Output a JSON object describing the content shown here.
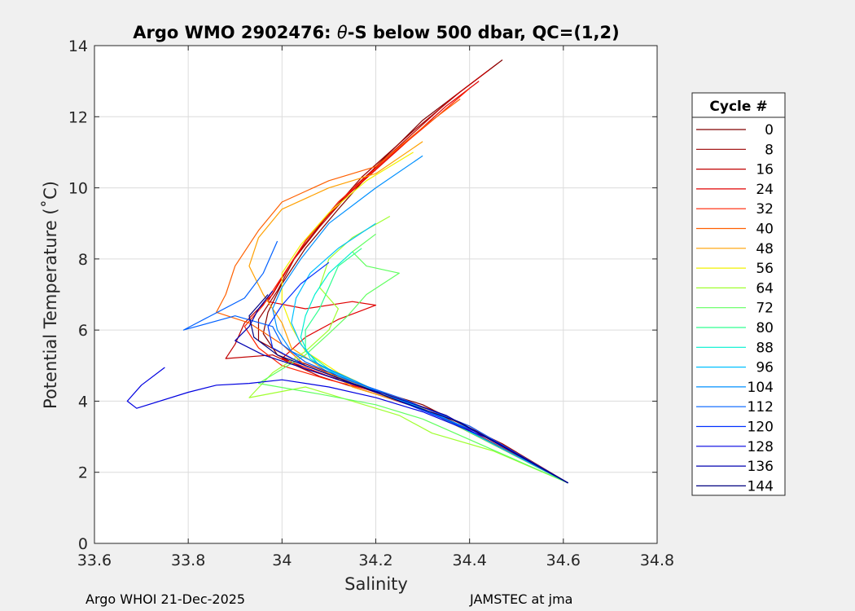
{
  "chart_data": {
    "type": "line",
    "title": "Argo WMO 2902476: θ-S below 500 dbar,  QC=(1,2)",
    "title_prefix": "Argo WMO 2902476: ",
    "title_theta": "θ",
    "title_suffix": "-S below 500 dbar,  QC=(1,2)",
    "xlabel": "Salinity",
    "ylabel": "Potential Temperature (˚C)",
    "xlim": [
      33.6,
      34.8
    ],
    "ylim": [
      0,
      14
    ],
    "xticks": [
      "33.6",
      "33.8",
      "34",
      "34.2",
      "34.4",
      "34.6",
      "34.8"
    ],
    "yticks": [
      "0",
      "2",
      "4",
      "6",
      "8",
      "10",
      "12",
      "14"
    ],
    "grid": true,
    "legend": {
      "title": "Cycle #",
      "placement": "right",
      "entries": [
        {
          "label": "0",
          "color": "#800000"
        },
        {
          "label": "8",
          "color": "#9a0000"
        },
        {
          "label": "16",
          "color": "#c00000"
        },
        {
          "label": "24",
          "color": "#e00000"
        },
        {
          "label": "32",
          "color": "#ff2000"
        },
        {
          "label": "40",
          "color": "#ff6000"
        },
        {
          "label": "48",
          "color": "#ffa000"
        },
        {
          "label": "56",
          "color": "#f2f200"
        },
        {
          "label": "64",
          "color": "#a0ff30"
        },
        {
          "label": "72",
          "color": "#60ff60"
        },
        {
          "label": "80",
          "color": "#30ff90"
        },
        {
          "label": "88",
          "color": "#00f0d0"
        },
        {
          "label": "96",
          "color": "#00c0ff"
        },
        {
          "label": "104",
          "color": "#0090ff"
        },
        {
          "label": "112",
          "color": "#0060ff"
        },
        {
          "label": "120",
          "color": "#0030ff"
        },
        {
          "label": "128",
          "color": "#0000e0"
        },
        {
          "label": "136",
          "color": "#0000b0"
        },
        {
          "label": "144",
          "color": "#000080"
        }
      ]
    },
    "series": [
      {
        "name": "0",
        "color": "#800000",
        "points": [
          [
            34.47,
            13.6
          ],
          [
            34.4,
            12.9
          ],
          [
            34.3,
            11.9
          ],
          [
            34.2,
            10.6
          ],
          [
            34.12,
            9.4
          ],
          [
            34.05,
            8.3
          ],
          [
            34.0,
            7.3
          ],
          [
            33.97,
            6.5
          ],
          [
            33.96,
            5.9
          ],
          [
            33.99,
            5.3
          ],
          [
            34.05,
            4.9
          ],
          [
            34.15,
            4.5
          ],
          [
            34.3,
            3.9
          ],
          [
            34.45,
            2.9
          ],
          [
            34.61,
            1.7
          ]
        ]
      },
      {
        "name": "8",
        "color": "#9a0000",
        "points": [
          [
            34.46,
            13.5
          ],
          [
            34.38,
            12.7
          ],
          [
            34.28,
            11.6
          ],
          [
            34.17,
            10.3
          ],
          [
            34.09,
            9.1
          ],
          [
            34.03,
            8.1
          ],
          [
            33.99,
            7.1
          ],
          [
            33.95,
            6.3
          ],
          [
            33.95,
            5.7
          ],
          [
            34.02,
            5.2
          ],
          [
            34.1,
            4.8
          ],
          [
            34.2,
            4.3
          ],
          [
            34.33,
            3.7
          ],
          [
            34.47,
            2.8
          ],
          [
            34.61,
            1.7
          ]
        ]
      },
      {
        "name": "16",
        "color": "#c00000",
        "points": [
          [
            34.44,
            13.3
          ],
          [
            34.36,
            12.5
          ],
          [
            34.26,
            11.3
          ],
          [
            34.16,
            10.1
          ],
          [
            34.08,
            8.9
          ],
          [
            34.02,
            7.9
          ],
          [
            33.98,
            7.0
          ],
          [
            33.92,
            6.2
          ],
          [
            33.9,
            5.6
          ],
          [
            33.88,
            5.2
          ],
          [
            33.98,
            5.3
          ],
          [
            34.08,
            4.7
          ],
          [
            34.2,
            4.2
          ],
          [
            34.34,
            3.6
          ],
          [
            34.61,
            1.7
          ]
        ]
      },
      {
        "name": "24",
        "color": "#e00000",
        "points": [
          [
            34.42,
            13.0
          ],
          [
            34.35,
            12.3
          ],
          [
            34.25,
            11.1
          ],
          [
            34.14,
            9.8
          ],
          [
            34.06,
            8.7
          ],
          [
            34.01,
            7.7
          ],
          [
            33.97,
            6.8
          ],
          [
            34.05,
            6.6
          ],
          [
            34.15,
            6.8
          ],
          [
            34.2,
            6.7
          ],
          [
            34.12,
            6.3
          ],
          [
            34.05,
            5.8
          ],
          [
            34.0,
            5.2
          ],
          [
            34.12,
            4.6
          ],
          [
            34.3,
            3.8
          ],
          [
            34.61,
            1.7
          ]
        ]
      },
      {
        "name": "32",
        "color": "#ff2000",
        "points": [
          [
            34.4,
            12.8
          ],
          [
            34.33,
            12.0
          ],
          [
            34.23,
            10.9
          ],
          [
            34.12,
            9.6
          ],
          [
            34.05,
            8.5
          ],
          [
            34.0,
            7.5
          ],
          [
            33.96,
            6.7
          ],
          [
            33.92,
            6.1
          ],
          [
            33.95,
            5.5
          ],
          [
            34.0,
            5.0
          ],
          [
            34.1,
            4.6
          ],
          [
            34.25,
            4.1
          ],
          [
            34.4,
            3.3
          ],
          [
            34.61,
            1.7
          ]
        ]
      },
      {
        "name": "40",
        "color": "#ff6000",
        "points": [
          [
            34.38,
            12.5
          ],
          [
            34.3,
            11.7
          ],
          [
            34.2,
            10.6
          ],
          [
            34.1,
            10.2
          ],
          [
            34.0,
            9.6
          ],
          [
            33.95,
            8.8
          ],
          [
            33.9,
            7.8
          ],
          [
            33.88,
            7.0
          ],
          [
            33.86,
            6.5
          ],
          [
            33.93,
            6.2
          ],
          [
            34.0,
            5.6
          ],
          [
            34.05,
            5.0
          ],
          [
            34.18,
            4.4
          ],
          [
            34.35,
            3.6
          ],
          [
            34.61,
            1.7
          ]
        ]
      },
      {
        "name": "48",
        "color": "#ffa000",
        "points": [
          [
            34.3,
            11.3
          ],
          [
            34.2,
            10.4
          ],
          [
            34.1,
            10.0
          ],
          [
            34.0,
            9.4
          ],
          [
            33.95,
            8.6
          ],
          [
            33.93,
            7.8
          ],
          [
            33.96,
            7.0
          ],
          [
            34.0,
            6.2
          ],
          [
            34.02,
            5.5
          ],
          [
            34.1,
            4.8
          ],
          [
            34.15,
            4.4
          ],
          [
            34.3,
            3.8
          ],
          [
            34.61,
            1.7
          ]
        ]
      },
      {
        "name": "56",
        "color": "#f2f200",
        "points": [
          [
            34.28,
            11.0
          ],
          [
            34.18,
            10.2
          ],
          [
            34.1,
            9.3
          ],
          [
            34.04,
            8.4
          ],
          [
            34.0,
            7.6
          ],
          [
            34.0,
            6.8
          ],
          [
            34.02,
            6.1
          ],
          [
            34.05,
            5.4
          ],
          [
            34.12,
            4.8
          ],
          [
            34.2,
            4.3
          ],
          [
            34.35,
            3.5
          ],
          [
            34.61,
            1.7
          ]
        ]
      },
      {
        "name": "64",
        "color": "#a0ff30",
        "points": [
          [
            34.23,
            9.2
          ],
          [
            34.15,
            8.6
          ],
          [
            34.1,
            8.0
          ],
          [
            34.08,
            7.2
          ],
          [
            34.12,
            6.6
          ],
          [
            34.1,
            6.0
          ],
          [
            34.05,
            5.4
          ],
          [
            33.98,
            4.8
          ],
          [
            33.93,
            4.1
          ],
          [
            34.05,
            4.4
          ],
          [
            34.15,
            4.0
          ],
          [
            34.25,
            3.6
          ],
          [
            34.32,
            3.1
          ],
          [
            34.45,
            2.6
          ],
          [
            34.61,
            1.7
          ]
        ]
      },
      {
        "name": "72",
        "color": "#60ff60",
        "points": [
          [
            34.2,
            8.7
          ],
          [
            34.15,
            8.2
          ],
          [
            34.18,
            7.8
          ],
          [
            34.25,
            7.6
          ],
          [
            34.18,
            7.0
          ],
          [
            34.14,
            6.4
          ],
          [
            34.1,
            5.9
          ],
          [
            34.05,
            5.3
          ],
          [
            34.0,
            4.9
          ],
          [
            33.95,
            4.5
          ],
          [
            34.08,
            4.2
          ],
          [
            34.2,
            3.9
          ],
          [
            34.3,
            3.5
          ],
          [
            34.61,
            1.7
          ]
        ]
      },
      {
        "name": "80",
        "color": "#30ff90",
        "points": [
          [
            34.17,
            8.3
          ],
          [
            34.12,
            7.8
          ],
          [
            34.1,
            7.2
          ],
          [
            34.08,
            6.6
          ],
          [
            34.05,
            6.0
          ],
          [
            34.05,
            5.4
          ],
          [
            34.1,
            4.9
          ],
          [
            34.2,
            4.3
          ],
          [
            34.33,
            3.6
          ],
          [
            34.61,
            1.7
          ]
        ]
      },
      {
        "name": "88",
        "color": "#00f0d0",
        "points": [
          [
            34.15,
            8.2
          ],
          [
            34.1,
            7.6
          ],
          [
            34.07,
            7.0
          ],
          [
            34.05,
            6.4
          ],
          [
            34.04,
            5.8
          ],
          [
            34.06,
            5.2
          ],
          [
            34.12,
            4.7
          ],
          [
            34.22,
            4.2
          ],
          [
            34.35,
            3.5
          ],
          [
            34.61,
            1.7
          ]
        ]
      },
      {
        "name": "96",
        "color": "#00c0ff",
        "points": [
          [
            34.2,
            9.0
          ],
          [
            34.12,
            8.3
          ],
          [
            34.06,
            7.6
          ],
          [
            34.03,
            6.9
          ],
          [
            34.02,
            6.2
          ],
          [
            34.04,
            5.6
          ],
          [
            34.08,
            5.0
          ],
          [
            34.16,
            4.5
          ],
          [
            34.28,
            3.9
          ],
          [
            34.42,
            3.1
          ],
          [
            34.61,
            1.7
          ]
        ]
      },
      {
        "name": "104",
        "color": "#0090ff",
        "points": [
          [
            34.3,
            10.9
          ],
          [
            34.2,
            10.0
          ],
          [
            34.1,
            9.0
          ],
          [
            34.04,
            8.0
          ],
          [
            34.0,
            7.2
          ],
          [
            33.98,
            6.6
          ],
          [
            33.99,
            6.0
          ],
          [
            34.02,
            5.4
          ],
          [
            34.1,
            4.9
          ],
          [
            34.2,
            4.3
          ],
          [
            34.35,
            3.5
          ],
          [
            34.61,
            1.7
          ]
        ]
      },
      {
        "name": "112",
        "color": "#0060ff",
        "points": [
          [
            33.99,
            8.5
          ],
          [
            33.96,
            7.6
          ],
          [
            33.92,
            6.9
          ],
          [
            33.79,
            6.0
          ],
          [
            33.9,
            6.4
          ],
          [
            33.98,
            6.1
          ],
          [
            34.0,
            5.6
          ],
          [
            34.05,
            5.1
          ],
          [
            34.14,
            4.6
          ],
          [
            34.25,
            4.1
          ],
          [
            34.4,
            3.3
          ],
          [
            34.61,
            1.7
          ]
        ]
      },
      {
        "name": "120",
        "color": "#0030ff",
        "points": [
          [
            34.1,
            7.9
          ],
          [
            34.04,
            7.3
          ],
          [
            34.0,
            6.7
          ],
          [
            33.97,
            6.1
          ],
          [
            33.98,
            5.5
          ],
          [
            34.05,
            5.0
          ],
          [
            34.15,
            4.5
          ],
          [
            34.27,
            3.9
          ],
          [
            34.42,
            3.1
          ],
          [
            34.61,
            1.7
          ]
        ]
      },
      {
        "name": "128",
        "color": "#0000e0",
        "points": [
          [
            33.75,
            4.95
          ],
          [
            33.7,
            4.45
          ],
          [
            33.67,
            4.0
          ],
          [
            33.69,
            3.8
          ],
          [
            33.8,
            4.25
          ],
          [
            33.86,
            4.45
          ],
          [
            33.93,
            4.5
          ],
          [
            34.0,
            4.6
          ],
          [
            34.1,
            4.4
          ],
          [
            34.2,
            4.1
          ],
          [
            34.3,
            3.7
          ],
          [
            34.45,
            2.9
          ],
          [
            34.61,
            1.7
          ]
        ]
      },
      {
        "name": "136",
        "color": "#0000b0",
        "points": [
          [
            33.98,
            7.1
          ],
          [
            33.95,
            6.6
          ],
          [
            33.93,
            6.1
          ],
          [
            33.9,
            5.7
          ],
          [
            33.96,
            5.3
          ],
          [
            34.03,
            5.0
          ],
          [
            34.12,
            4.6
          ],
          [
            34.22,
            4.2
          ],
          [
            34.35,
            3.6
          ],
          [
            34.61,
            1.7
          ]
        ]
      },
      {
        "name": "144",
        "color": "#000080",
        "points": [
          [
            33.97,
            7.0
          ],
          [
            33.93,
            6.4
          ],
          [
            33.94,
            5.8
          ],
          [
            33.99,
            5.3
          ],
          [
            34.05,
            5.0
          ],
          [
            34.13,
            4.6
          ],
          [
            34.23,
            4.1
          ],
          [
            34.38,
            3.4
          ],
          [
            34.61,
            1.7
          ]
        ]
      }
    ]
  },
  "footer": {
    "left": "Argo WHOI 21-Dec-2025",
    "right": "JAMSTEC at jma"
  }
}
